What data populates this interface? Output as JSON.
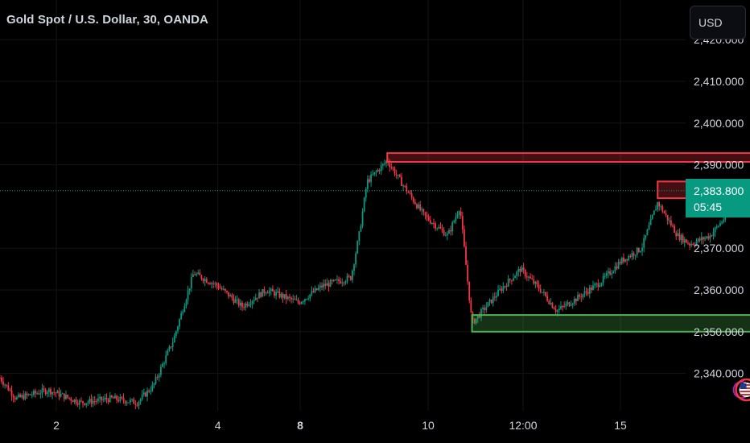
{
  "header": {
    "title": "Gold Spot / U.S. Dollar, 30, OANDA",
    "currency": "USD"
  },
  "colors": {
    "background": "#000000",
    "grid": "#141414",
    "up": "#089981",
    "down": "#f23645",
    "resistance_zone": "#f23645",
    "support_zone": "#4caf50",
    "last_price_line": "#089981"
  },
  "last_price": {
    "price": "2,383.800",
    "countdown": "05:45"
  },
  "chart_data": {
    "type": "candlestick",
    "instrument": "Gold Spot / U.S. Dollar",
    "interval": "30",
    "source": "OANDA",
    "ylim": [
      2333,
      2425
    ],
    "y_ticks": [
      "2,420.000",
      "2,410.000",
      "2,400.000",
      "2,390.000",
      "2,370.000",
      "2,360.000",
      "2,350.000",
      "2,340.000"
    ],
    "x_ticks": [
      "2",
      "4",
      "8",
      "10",
      "12:00",
      "15"
    ],
    "grid": true,
    "last_price": 2383.8,
    "price_path": [
      {
        "day": 1.3,
        "price": 2339
      },
      {
        "day": 1.5,
        "price": 2334
      },
      {
        "day": 1.9,
        "price": 2336
      },
      {
        "day": 2.3,
        "price": 2333
      },
      {
        "day": 2.7,
        "price": 2334
      },
      {
        "day": 3.0,
        "price": 2333
      },
      {
        "day": 3.2,
        "price": 2337
      },
      {
        "day": 3.45,
        "price": 2348
      },
      {
        "day": 3.7,
        "price": 2364
      },
      {
        "day": 4.0,
        "price": 2361
      },
      {
        "day": 4.3,
        "price": 2356
      },
      {
        "day": 4.6,
        "price": 2360
      },
      {
        "day": 5.0,
        "price": 2357
      },
      {
        "day": 5.3,
        "price": 2361
      },
      {
        "day": 5.65,
        "price": 2363
      },
      {
        "day": 5.75,
        "price": 2373
      },
      {
        "day": 5.85,
        "price": 2386
      },
      {
        "day": 6.1,
        "price": 2391
      },
      {
        "day": 6.3,
        "price": 2385
      },
      {
        "day": 6.55,
        "price": 2378
      },
      {
        "day": 6.85,
        "price": 2373
      },
      {
        "day": 7.0,
        "price": 2380
      },
      {
        "day": 7.15,
        "price": 2352
      },
      {
        "day": 7.5,
        "price": 2360
      },
      {
        "day": 7.75,
        "price": 2365
      },
      {
        "day": 8.0,
        "price": 2360
      },
      {
        "day": 8.2,
        "price": 2355
      },
      {
        "day": 8.45,
        "price": 2358
      },
      {
        "day": 8.75,
        "price": 2362
      },
      {
        "day": 9.0,
        "price": 2367
      },
      {
        "day": 9.25,
        "price": 2370
      },
      {
        "day": 9.45,
        "price": 2381
      },
      {
        "day": 9.7,
        "price": 2373
      },
      {
        "day": 9.85,
        "price": 2371
      },
      {
        "day": 10.1,
        "price": 2373
      },
      {
        "day": 10.35,
        "price": 2379
      },
      {
        "day": 10.55,
        "price": 2383.8
      }
    ],
    "zones": [
      {
        "type": "resistance",
        "x_start": 6.1,
        "x_end": 10.9,
        "y_low": 2390.7,
        "y_high": 2392.8
      },
      {
        "type": "resistance",
        "x_start": 9.45,
        "x_end": 10.9,
        "y_low": 2382,
        "y_high": 2386
      },
      {
        "type": "support",
        "x_start": 7.15,
        "x_end": 10.9,
        "y_low": 2350,
        "y_high": 2354
      }
    ],
    "events": [
      {
        "x": 10.55,
        "icon": "us-flag"
      },
      {
        "x": 11.75,
        "icon": "us-flag"
      }
    ]
  }
}
